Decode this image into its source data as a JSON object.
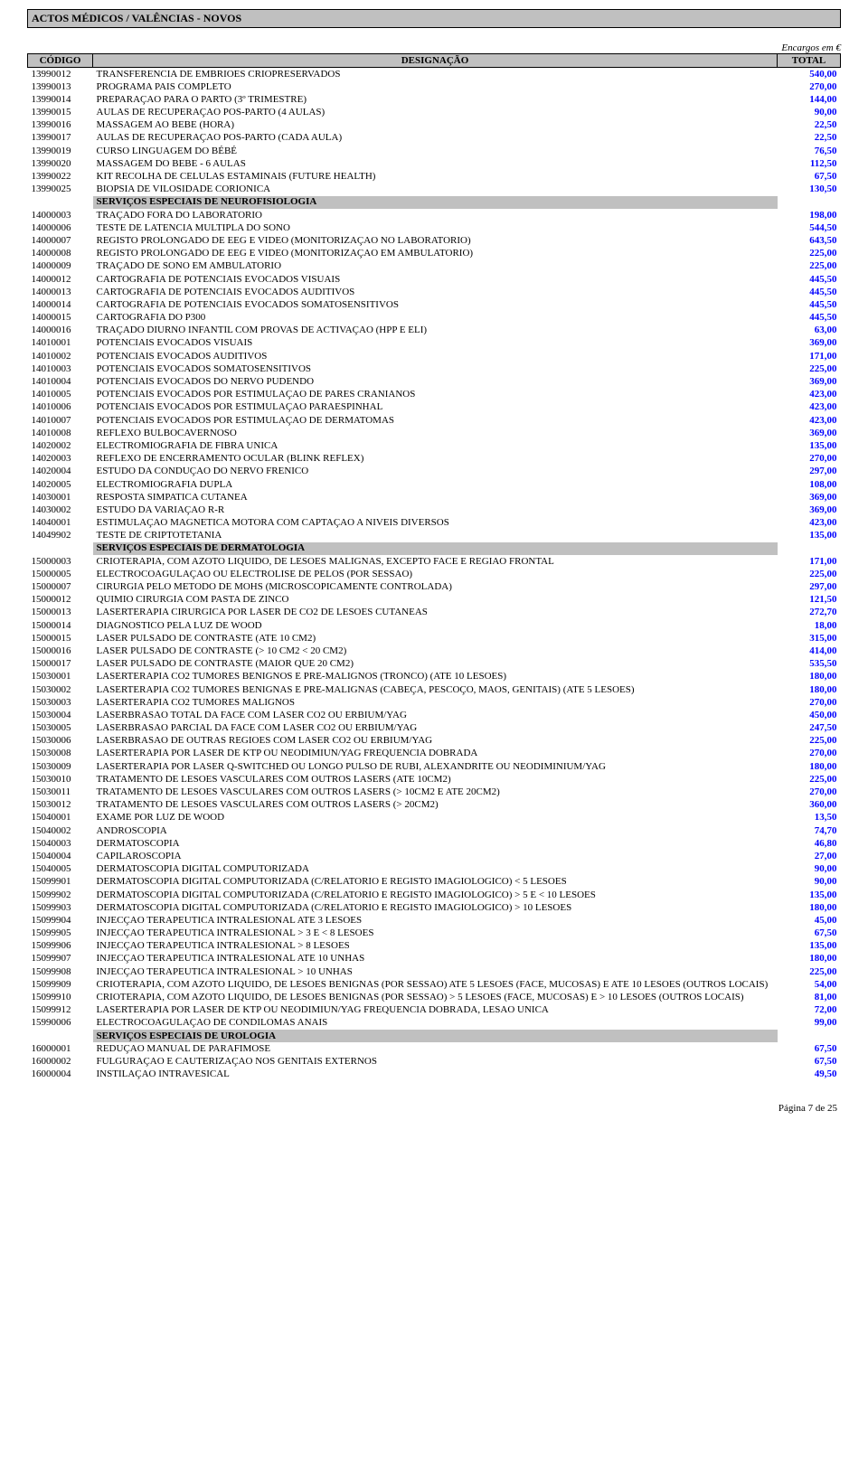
{
  "header": {
    "title": "ACTOS MÉDICOS / VALÊNCIAS - NOVOS",
    "encargos": "Encargos em €",
    "col_codigo": "CÓDIGO",
    "col_desc": "DESIGNAÇÃO",
    "col_total": "TOTAL"
  },
  "colors": {
    "total_text": "#0000ff",
    "header_bg": "#c0c0c0",
    "border": "#000000"
  },
  "rows": [
    {
      "c": "13990012",
      "d": "TRANSFERENCIA DE EMBRIOES CRIOPRESERVADOS",
      "t": "540,00"
    },
    {
      "c": "13990013",
      "d": "PROGRAMA PAIS COMPLETO",
      "t": "270,00"
    },
    {
      "c": "13990014",
      "d": "PREPARAÇAO PARA O PARTO (3º TRIMESTRE)",
      "t": "144,00"
    },
    {
      "c": "13990015",
      "d": "AULAS DE RECUPERAÇAO POS-PARTO (4 AULAS)",
      "t": "90,00"
    },
    {
      "c": "13990016",
      "d": "MASSAGEM AO BEBE (HORA)",
      "t": "22,50"
    },
    {
      "c": "13990017",
      "d": "AULAS DE RECUPERAÇAO POS-PARTO (CADA AULA)",
      "t": "22,50"
    },
    {
      "c": "13990019",
      "d": "CURSO LINGUAGEM DO BÉBÉ",
      "t": "76,50"
    },
    {
      "c": "13990020",
      "d": "MASSAGEM DO BEBE - 6 AULAS",
      "t": "112,50"
    },
    {
      "c": "13990022",
      "d": "KIT RECOLHA DE CELULAS ESTAMINAIS (FUTURE HEALTH)",
      "t": "67,50"
    },
    {
      "c": "13990025",
      "d": "BIOPSIA DE VILOSIDADE CORIONICA",
      "t": "130,50"
    },
    {
      "section": true,
      "d": "SERVIÇOS ESPECIAIS DE NEUROFISIOLOGIA"
    },
    {
      "c": "14000003",
      "d": "TRAÇADO FORA DO LABORATORIO",
      "t": "198,00"
    },
    {
      "c": "14000006",
      "d": "TESTE DE LATENCIA MULTIPLA DO SONO",
      "t": "544,50"
    },
    {
      "c": "14000007",
      "d": "REGISTO PROLONGADO DE EEG E VIDEO (MONITORIZAÇAO NO LABORATORIO)",
      "t": "643,50"
    },
    {
      "c": "14000008",
      "d": "REGISTO PROLONGADO DE EEG E VIDEO (MONITORIZAÇAO EM AMBULATORIO)",
      "t": "225,00"
    },
    {
      "c": "14000009",
      "d": "TRAÇADO DE SONO EM AMBULATORIO",
      "t": "225,00"
    },
    {
      "c": "14000012",
      "d": "CARTOGRAFIA DE POTENCIAIS EVOCADOS VISUAIS",
      "t": "445,50"
    },
    {
      "c": "14000013",
      "d": "CARTOGRAFIA DE POTENCIAIS EVOCADOS AUDITIVOS",
      "t": "445,50"
    },
    {
      "c": "14000014",
      "d": "CARTOGRAFIA DE POTENCIAIS EVOCADOS SOMATOSENSITIVOS",
      "t": "445,50"
    },
    {
      "c": "14000015",
      "d": "CARTOGRAFIA DO P300",
      "t": "445,50"
    },
    {
      "c": "14000016",
      "d": "TRAÇADO DIURNO INFANTIL COM PROVAS DE ACTIVAÇAO (HPP E ELI)",
      "t": "63,00"
    },
    {
      "c": "14010001",
      "d": "POTENCIAIS EVOCADOS VISUAIS",
      "t": "369,00"
    },
    {
      "c": "14010002",
      "d": "POTENCIAIS EVOCADOS AUDITIVOS",
      "t": "171,00"
    },
    {
      "c": "14010003",
      "d": "POTENCIAIS EVOCADOS SOMATOSENSITIVOS",
      "t": "225,00"
    },
    {
      "c": "14010004",
      "d": "POTENCIAIS EVOCADOS DO NERVO PUDENDO",
      "t": "369,00"
    },
    {
      "c": "14010005",
      "d": "POTENCIAIS EVOCADOS POR ESTIMULAÇAO DE PARES CRANIANOS",
      "t": "423,00"
    },
    {
      "c": "14010006",
      "d": "POTENCIAIS EVOCADOS POR ESTIMULAÇAO PARAESPINHAL",
      "t": "423,00"
    },
    {
      "c": "14010007",
      "d": "POTENCIAIS EVOCADOS POR ESTIMULAÇAO DE DERMATOMAS",
      "t": "423,00"
    },
    {
      "c": "14010008",
      "d": "REFLEXO BULBOCAVERNOSO",
      "t": "369,00"
    },
    {
      "c": "14020002",
      "d": "ELECTROMIOGRAFIA DE FIBRA UNICA",
      "t": "135,00"
    },
    {
      "c": "14020003",
      "d": "REFLEXO DE ENCERRAMENTO OCULAR (BLINK REFLEX)",
      "t": "270,00"
    },
    {
      "c": "14020004",
      "d": "ESTUDO DA CONDUÇAO DO NERVO FRENICO",
      "t": "297,00"
    },
    {
      "c": "14020005",
      "d": "ELECTROMIOGRAFIA DUPLA",
      "t": "108,00"
    },
    {
      "c": "14030001",
      "d": "RESPOSTA SIMPATICA CUTANEA",
      "t": "369,00"
    },
    {
      "c": "14030002",
      "d": "ESTUDO DA VARIAÇAO R-R",
      "t": "369,00"
    },
    {
      "c": "14040001",
      "d": "ESTIMULAÇAO MAGNETICA MOTORA COM CAPTAÇAO A NIVEIS DIVERSOS",
      "t": "423,00"
    },
    {
      "c": "14049902",
      "d": "TESTE DE CRIPTOTETANIA",
      "t": "135,00"
    },
    {
      "section": true,
      "d": "SERVIÇOS ESPECIAIS DE DERMATOLOGIA"
    },
    {
      "c": "15000003",
      "d": "CRIOTERAPIA, COM AZOTO LIQUIDO, DE LESOES MALIGNAS, EXCEPTO FACE E REGIAO FRONTAL",
      "t": "171,00"
    },
    {
      "c": "15000005",
      "d": "ELECTROCOAGULAÇAO OU ELECTROLISE DE PELOS (POR SESSAO)",
      "t": "225,00"
    },
    {
      "c": "15000007",
      "d": "CIRURGIA PELO METODO DE MOHS (MICROSCOPICAMENTE CONTROLADA)",
      "t": "297,00"
    },
    {
      "c": "15000012",
      "d": "QUIMIO CIRURGIA COM PASTA DE ZINCO",
      "t": "121,50"
    },
    {
      "c": "15000013",
      "d": "LASERTERAPIA CIRURGICA POR LASER DE CO2 DE LESOES CUTANEAS",
      "t": "272,70"
    },
    {
      "c": "15000014",
      "d": "DIAGNOSTICO PELA LUZ DE WOOD",
      "t": "18,00"
    },
    {
      "c": "15000015",
      "d": "LASER PULSADO DE CONTRASTE (ATE 10 CM2)",
      "t": "315,00"
    },
    {
      "c": "15000016",
      "d": "LASER PULSADO DE CONTRASTE (> 10 CM2 < 20 CM2)",
      "t": "414,00"
    },
    {
      "c": "15000017",
      "d": "LASER PULSADO DE CONTRASTE (MAIOR QUE 20 CM2)",
      "t": "535,50"
    },
    {
      "c": "15030001",
      "d": "LASERTERAPIA CO2 TUMORES BENIGNOS E PRE-MALIGNOS (TRONCO) (ATE 10 LESOES)",
      "t": "180,00"
    },
    {
      "c": "15030002",
      "d": "LASERTERAPIA CO2 TUMORES BENIGNAS E PRE-MALIGNAS (CABEÇA, PESCOÇO, MAOS, GENITAIS) (ATE 5 LESOES)",
      "t": "180,00"
    },
    {
      "c": "15030003",
      "d": "LASERTERAPIA CO2 TUMORES MALIGNOS",
      "t": "270,00"
    },
    {
      "c": "15030004",
      "d": "LASERBRASAO TOTAL DA FACE COM LASER CO2 OU ERBIUM/YAG",
      "t": "450,00"
    },
    {
      "c": "15030005",
      "d": "LASERBRASAO PARCIAL DA FACE COM LASER CO2 OU ERBIUM/YAG",
      "t": "247,50"
    },
    {
      "c": "15030006",
      "d": "LASERBRASAO DE OUTRAS REGIOES COM LASER CO2 OU ERBIUM/YAG",
      "t": "225,00"
    },
    {
      "c": "15030008",
      "d": "LASERTERAPIA POR LASER DE KTP OU NEODIMIUN/YAG FREQUENCIA DOBRADA",
      "t": "270,00"
    },
    {
      "c": "15030009",
      "d": "LASERTERAPIA POR LASER Q-SWITCHED OU LONGO PULSO DE RUBI, ALEXANDRITE OU NEODIMINIUM/YAG",
      "t": "180,00"
    },
    {
      "c": "15030010",
      "d": "TRATAMENTO DE LESOES VASCULARES COM OUTROS LASERS (ATE 10CM2)",
      "t": "225,00"
    },
    {
      "c": "15030011",
      "d": "TRATAMENTO DE LESOES VASCULARES COM OUTROS LASERS (> 10CM2 E ATE 20CM2)",
      "t": "270,00"
    },
    {
      "c": "15030012",
      "d": "TRATAMENTO DE LESOES VASCULARES COM OUTROS LASERS (> 20CM2)",
      "t": "360,00"
    },
    {
      "c": "15040001",
      "d": "EXAME POR LUZ DE WOOD",
      "t": "13,50"
    },
    {
      "c": "15040002",
      "d": "ANDROSCOPIA",
      "t": "74,70"
    },
    {
      "c": "15040003",
      "d": "DERMATOSCOPIA",
      "t": "46,80"
    },
    {
      "c": "15040004",
      "d": "CAPILAROSCOPIA",
      "t": "27,00"
    },
    {
      "c": "15040005",
      "d": "DERMATOSCOPIA DIGITAL COMPUTORIZADA",
      "t": "90,00"
    },
    {
      "c": "15099901",
      "d": "DERMATOSCOPIA DIGITAL COMPUTORIZADA (C/RELATORIO E REGISTO IMAGIOLOGICO) < 5 LESOES",
      "t": "90,00"
    },
    {
      "c": "15099902",
      "d": "DERMATOSCOPIA DIGITAL COMPUTORIZADA (C/RELATORIO E REGISTO IMAGIOLOGICO) > 5 E < 10 LESOES",
      "t": "135,00"
    },
    {
      "c": "15099903",
      "d": "DERMATOSCOPIA DIGITAL COMPUTORIZADA (C/RELATORIO E REGISTO IMAGIOLOGICO) > 10 LESOES",
      "t": "180,00"
    },
    {
      "c": "15099904",
      "d": "INJECÇAO TERAPEUTICA INTRALESIONAL ATE 3 LESOES",
      "t": "45,00"
    },
    {
      "c": "15099905",
      "d": "INJECÇAO TERAPEUTICA INTRALESIONAL > 3 E < 8 LESOES",
      "t": "67,50"
    },
    {
      "c": "15099906",
      "d": "INJECÇAO TERAPEUTICA INTRALESIONAL > 8 LESOES",
      "t": "135,00"
    },
    {
      "c": "15099907",
      "d": "INJECÇAO TERAPEUTICA INTRALESIONAL  ATE 10 UNHAS",
      "t": "180,00"
    },
    {
      "c": "15099908",
      "d": "INJECÇAO TERAPEUTICA INTRALESIONAL > 10 UNHAS",
      "t": "225,00"
    },
    {
      "c": "15099909",
      "d": "CRIOTERAPIA, COM AZOTO LIQUIDO, DE LESOES BENIGNAS (POR SESSAO) ATE 5 LESOES (FACE, MUCOSAS) E ATE 10 LESOES (OUTROS LOCAIS)",
      "t": "54,00"
    },
    {
      "c": "15099910",
      "d": "CRIOTERAPIA, COM AZOTO LIQUIDO, DE LESOES BENIGNAS (POR SESSAO) > 5 LESOES (FACE, MUCOSAS) E > 10 LESOES (OUTROS LOCAIS)",
      "t": "81,00"
    },
    {
      "c": "15099912",
      "d": "LASERTERAPIA POR LASER DE KTP OU NEODIMIUN/YAG FREQUENCIA DOBRADA, LESAO UNICA",
      "t": "72,00"
    },
    {
      "c": "15990006",
      "d": "ELECTROCOAGULAÇAO DE CONDILOMAS ANAIS",
      "t": "99,00"
    },
    {
      "section": true,
      "d": "SERVIÇOS ESPECIAIS DE UROLOGIA"
    },
    {
      "c": "16000001",
      "d": "REDUÇAO MANUAL DE PARAFIMOSE",
      "t": "67,50"
    },
    {
      "c": "16000002",
      "d": "FULGURAÇAO E CAUTERIZAÇAO NOS GENITAIS EXTERNOS",
      "t": "67,50"
    },
    {
      "c": "16000004",
      "d": "INSTILAÇAO INTRAVESICAL",
      "t": "49,50"
    }
  ],
  "footer": "Página 7 de 25"
}
